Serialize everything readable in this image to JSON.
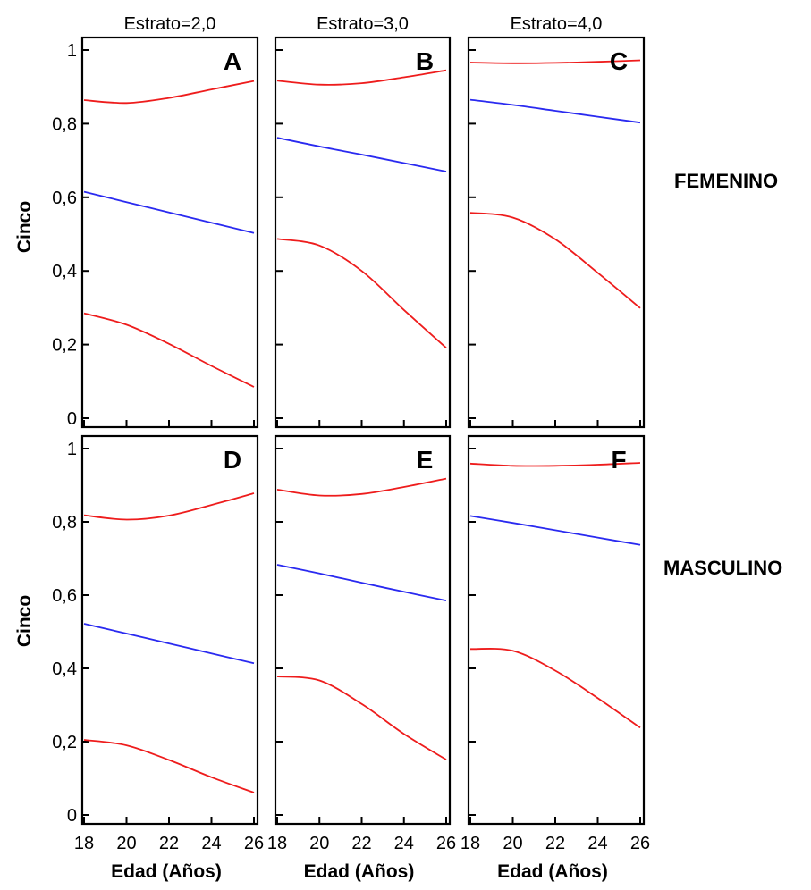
{
  "chart_data": {
    "type": "line",
    "layout": "small-multiples",
    "column_titles": [
      "Estrato=2,0",
      "Estrato=3,0",
      "Estrato=4,0"
    ],
    "row_labels": [
      "FEMENINO",
      "MASCULINO"
    ],
    "ylabel": "Cinco",
    "xlabel": "Edad (Años)",
    "xlim": [
      18,
      26
    ],
    "ylim": [
      0,
      1
    ],
    "x_ticks": [
      18,
      20,
      22,
      24,
      26
    ],
    "x_tick_labels": [
      "18",
      "20",
      "22",
      "24",
      "26"
    ],
    "y_ticks": [
      0,
      0.2,
      0.4,
      0.6,
      0.8,
      1
    ],
    "y_tick_labels": [
      "0",
      "0,2",
      "0,4",
      "0,6",
      "0,8",
      "1"
    ],
    "grid": false,
    "colors": {
      "estimate": "#2a2af0",
      "bounds": "#ee1c1c",
      "axes": "#000000"
    },
    "panels": [
      {
        "letter": "A",
        "row": 0,
        "col": 0,
        "x": [
          18,
          20,
          22,
          24,
          26
        ],
        "upper": [
          0.864,
          0.856,
          0.87,
          0.893,
          0.916
        ],
        "estimate": [
          0.615,
          0.587,
          0.559,
          0.531,
          0.503
        ],
        "lower": [
          0.285,
          0.254,
          0.202,
          0.142,
          0.085
        ]
      },
      {
        "letter": "B",
        "row": 0,
        "col": 1,
        "x": [
          18,
          20,
          22,
          24,
          26
        ],
        "upper": [
          0.917,
          0.906,
          0.91,
          0.926,
          0.945
        ],
        "estimate": [
          0.762,
          0.738,
          0.716,
          0.693,
          0.67
        ],
        "lower": [
          0.487,
          0.469,
          0.4,
          0.294,
          0.191
        ]
      },
      {
        "letter": "C",
        "row": 0,
        "col": 2,
        "x": [
          18,
          20,
          22,
          24,
          26
        ],
        "upper": [
          0.966,
          0.964,
          0.965,
          0.968,
          0.972
        ],
        "estimate": [
          0.865,
          0.851,
          0.835,
          0.819,
          0.803
        ],
        "lower": [
          0.558,
          0.545,
          0.486,
          0.395,
          0.299
        ]
      },
      {
        "letter": "D",
        "row": 1,
        "col": 0,
        "x": [
          18,
          20,
          22,
          24,
          26
        ],
        "upper": [
          0.818,
          0.806,
          0.817,
          0.846,
          0.878
        ],
        "estimate": [
          0.522,
          0.495,
          0.468,
          0.441,
          0.414
        ],
        "lower": [
          0.205,
          0.19,
          0.15,
          0.103,
          0.061
        ]
      },
      {
        "letter": "E",
        "row": 1,
        "col": 1,
        "x": [
          18,
          20,
          22,
          24,
          26
        ],
        "upper": [
          0.888,
          0.872,
          0.876,
          0.895,
          0.918
        ],
        "estimate": [
          0.683,
          0.659,
          0.634,
          0.609,
          0.585
        ],
        "lower": [
          0.378,
          0.367,
          0.303,
          0.221,
          0.151
        ]
      },
      {
        "letter": "F",
        "row": 1,
        "col": 2,
        "x": [
          18,
          20,
          22,
          24,
          26
        ],
        "upper": [
          0.959,
          0.953,
          0.953,
          0.956,
          0.961
        ],
        "estimate": [
          0.816,
          0.797,
          0.777,
          0.757,
          0.737
        ],
        "lower": [
          0.453,
          0.448,
          0.394,
          0.319,
          0.238
        ]
      }
    ]
  }
}
